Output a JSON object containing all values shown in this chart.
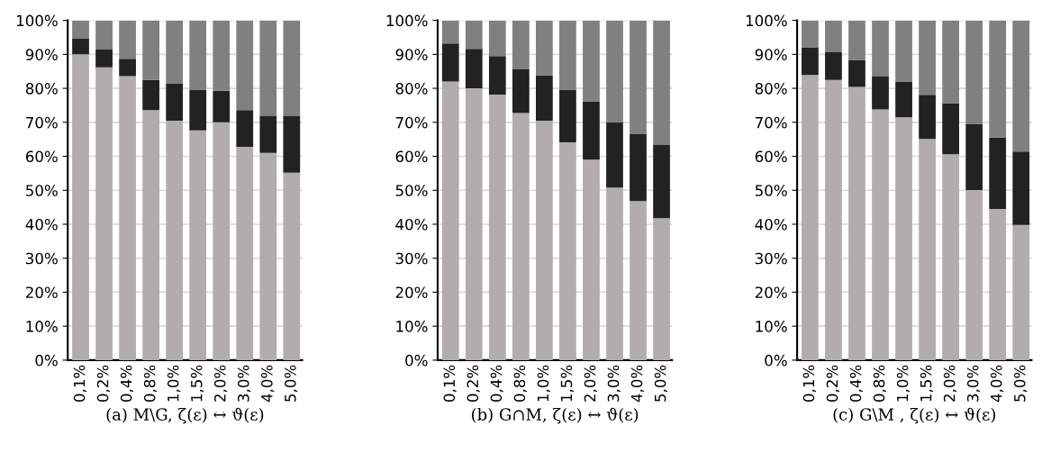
{
  "chart_data": [
    {
      "type": "bar",
      "stacked": true,
      "xlabel": "(a) M\\G, ζ(ε) ↔ ϑ(ε)",
      "categories": [
        "0,1%",
        "0,2%",
        "0,4%",
        "0,8%",
        "1,0%",
        "1,5%",
        "2,0%",
        "3,0%",
        "4,0%",
        "5,0%"
      ],
      "series": [
        {
          "color": "#b0adac",
          "values": [
            90,
            86.2,
            83.6,
            73.6,
            70.5,
            67.6,
            70,
            62.8,
            61,
            55.2
          ]
        },
        {
          "color": "#222222",
          "values": [
            4.6,
            5.2,
            5.1,
            8.9,
            11,
            12,
            9.3,
            10.8,
            10.8,
            16.6
          ]
        },
        {
          "color": "#808080",
          "values": [
            5.4,
            8.6,
            11.3,
            17.5,
            18.5,
            20.4,
            20.7,
            26.4,
            28.2,
            28.2
          ]
        }
      ],
      "ylim": [
        0,
        100
      ],
      "yticks": [
        {
          "value": 0,
          "label": "0%"
        },
        {
          "value": 10,
          "label": "10%"
        },
        {
          "value": 20,
          "label": "20%"
        },
        {
          "value": 30,
          "label": "30%"
        },
        {
          "value": 40,
          "label": "40%"
        },
        {
          "value": 50,
          "label": "50%"
        },
        {
          "value": 60,
          "label": "60%"
        },
        {
          "value": 70,
          "label": "70%"
        },
        {
          "value": 80,
          "label": "80%"
        },
        {
          "value": 90,
          "label": "90%"
        },
        {
          "value": 100,
          "label": "100%"
        }
      ],
      "grid": "y"
    },
    {
      "type": "bar",
      "stacked": true,
      "xlabel": "(b) G∩M, ζ(ε) ↔ ϑ(ε)",
      "categories": [
        "0,1%",
        "0,2%",
        "0,4%",
        "0,8%",
        "1,0%",
        "1,5%",
        "2,0%",
        "3,0%",
        "4,0%",
        "5,0%"
      ],
      "series": [
        {
          "color": "#b0adac",
          "values": [
            82,
            80,
            78.2,
            72.7,
            70.5,
            64.1,
            59,
            50.8,
            46.8,
            41.8
          ]
        },
        {
          "color": "#222222",
          "values": [
            11.2,
            11.6,
            11.3,
            12.9,
            13.3,
            15.5,
            17.2,
            19.2,
            19.7,
            21.5
          ]
        },
        {
          "color": "#808080",
          "values": [
            6.8,
            8.4,
            10.5,
            14.4,
            16.2,
            20.4,
            23.8,
            30,
            33.5,
            36.7
          ]
        }
      ],
      "ylim": [
        0,
        100
      ],
      "yticks": [
        {
          "value": 0,
          "label": "0%"
        },
        {
          "value": 10,
          "label": "10%"
        },
        {
          "value": 20,
          "label": "20%"
        },
        {
          "value": 30,
          "label": "30%"
        },
        {
          "value": 40,
          "label": "40%"
        },
        {
          "value": 50,
          "label": "50%"
        },
        {
          "value": 60,
          "label": "60%"
        },
        {
          "value": 70,
          "label": "70%"
        },
        {
          "value": 80,
          "label": "80%"
        },
        {
          "value": 90,
          "label": "90%"
        },
        {
          "value": 100,
          "label": "100%"
        }
      ],
      "grid": "y"
    },
    {
      "type": "bar",
      "stacked": true,
      "xlabel": "(c) G\\M , ζ(ε) ↔ ϑ(ε)",
      "categories": [
        "0,1%",
        "0,2%",
        "0,4%",
        "0,8%",
        "1,0%",
        "1,5%",
        "2,0%",
        "3,0%",
        "4,0%",
        "5,0%"
      ],
      "series": [
        {
          "color": "#b0adac",
          "values": [
            83.9,
            82.5,
            80.4,
            73.8,
            71.5,
            65.1,
            60.6,
            50.1,
            44.5,
            39.8
          ]
        },
        {
          "color": "#222222",
          "values": [
            8.2,
            8.1,
            8,
            9.7,
            10.5,
            13,
            15,
            19.3,
            21,
            21.6
          ]
        },
        {
          "color": "#808080",
          "values": [
            7.9,
            9.4,
            11.6,
            16.5,
            18,
            21.9,
            24.4,
            30.6,
            34.5,
            38.6
          ]
        }
      ],
      "ylim": [
        0,
        100
      ],
      "yticks": [
        {
          "value": 0,
          "label": "0%"
        },
        {
          "value": 10,
          "label": "10%"
        },
        {
          "value": 20,
          "label": "20%"
        },
        {
          "value": 30,
          "label": "30%"
        },
        {
          "value": 40,
          "label": "40%"
        },
        {
          "value": 50,
          "label": "50%"
        },
        {
          "value": 60,
          "label": "60%"
        },
        {
          "value": 70,
          "label": "70%"
        },
        {
          "value": 80,
          "label": "80%"
        },
        {
          "value": 90,
          "label": "90%"
        },
        {
          "value": 100,
          "label": "100%"
        }
      ],
      "grid": "y"
    }
  ]
}
